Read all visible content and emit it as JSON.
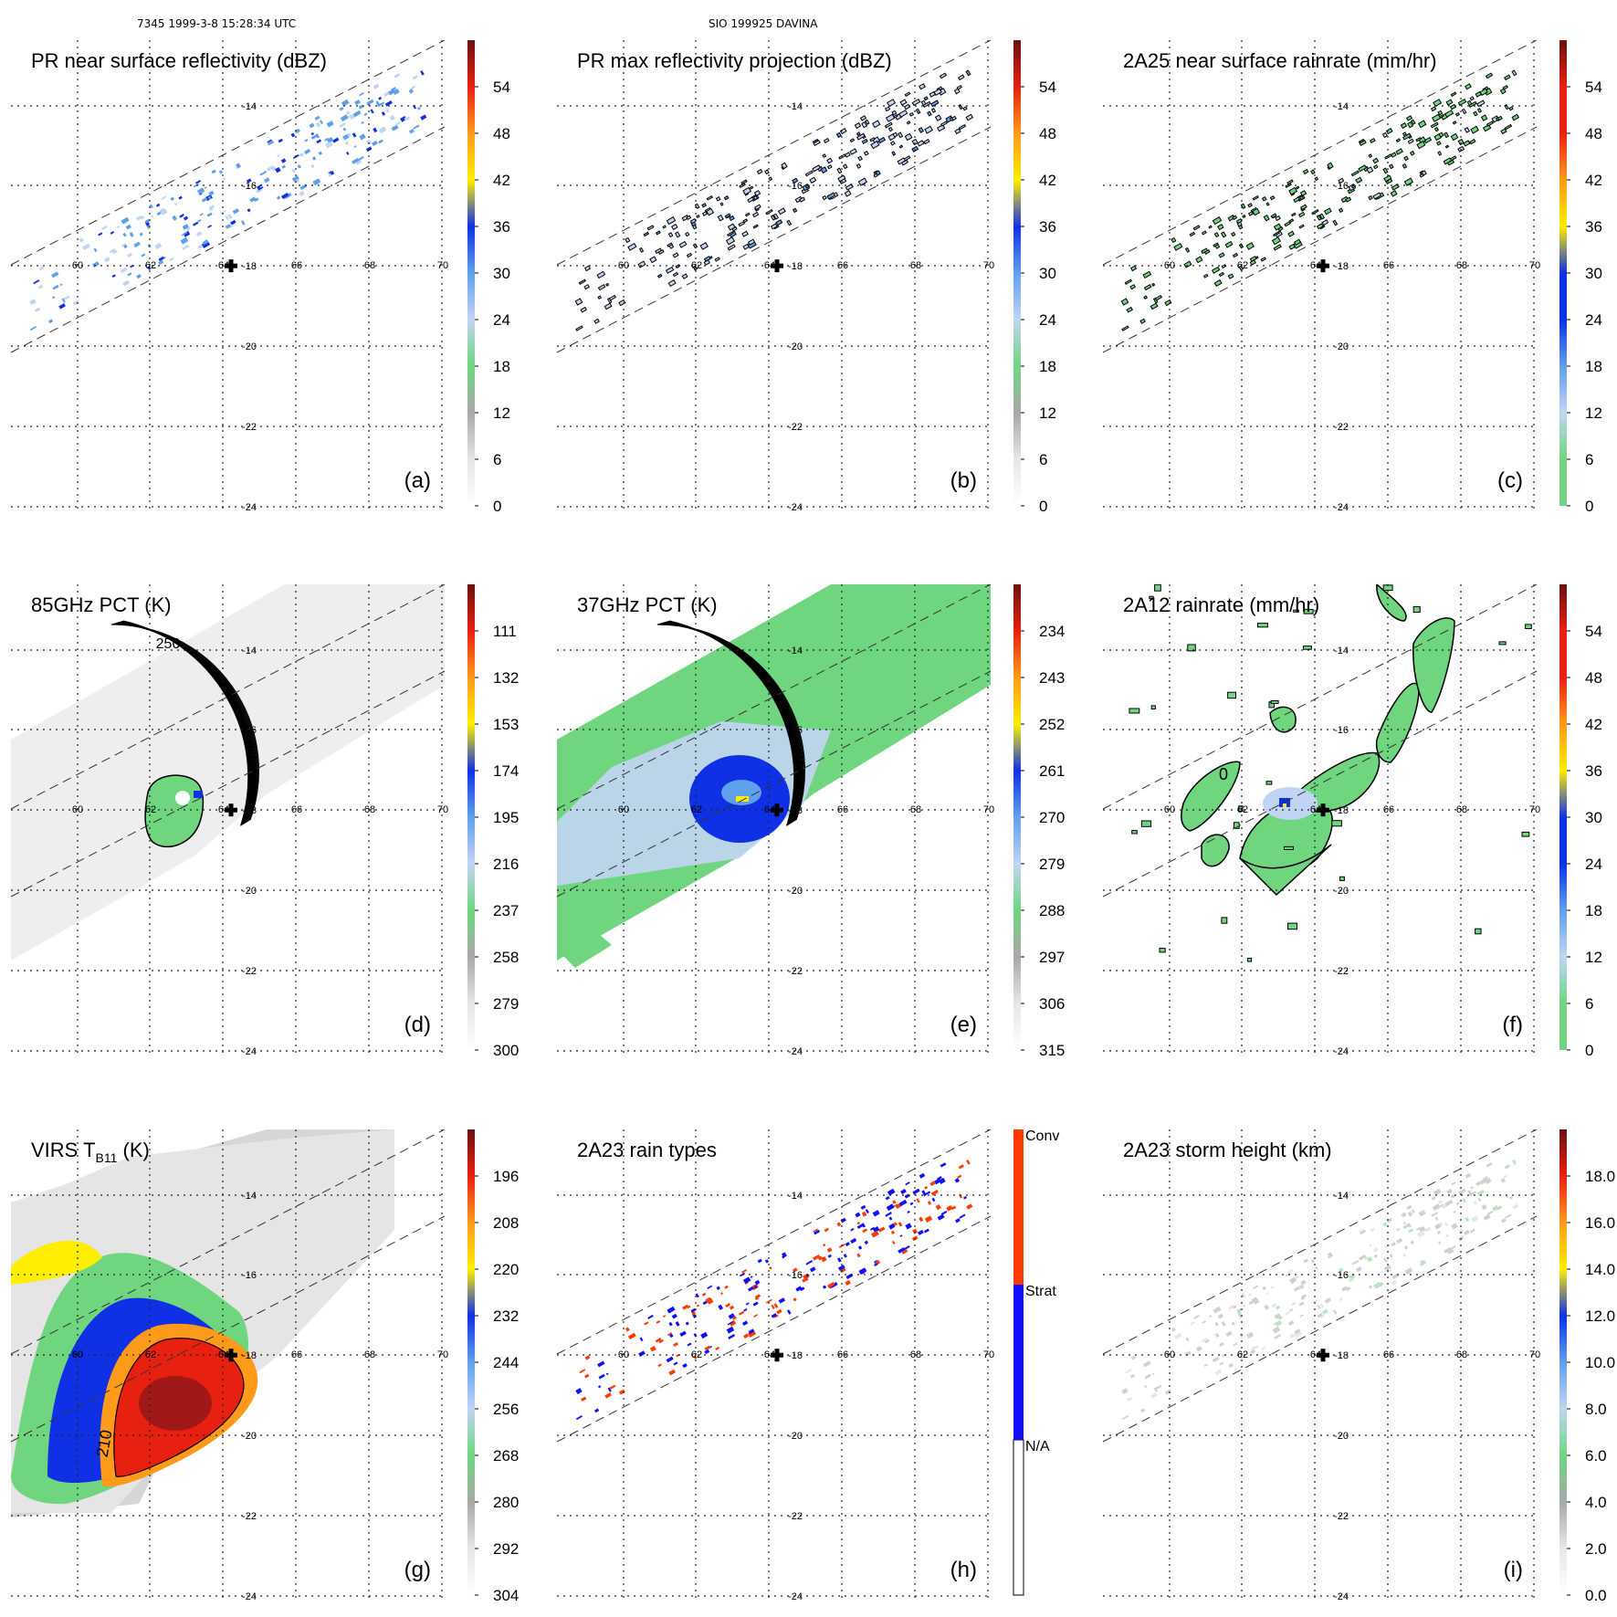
{
  "header": {
    "orbit_time": "7345 1999-3-8 15:28:34 UTC",
    "storm_id": "SIO 199925 DAVINA"
  },
  "map": {
    "lon_labels": [
      "60",
      "62",
      "64",
      "66",
      "68",
      "70"
    ],
    "lat_labels": [
      "-14",
      "-16",
      "-18",
      "-20",
      "-22",
      "-24"
    ],
    "storm_center": {
      "lon": 64.2,
      "lat": -18.0
    }
  },
  "colors": {
    "na": "#ffffff",
    "gray_light": "#e6e6e6",
    "gray": "#a8a8a8",
    "green": "#6fd67f",
    "lightblue": "#c2d4f4",
    "blue_mid": "#5fa0ec",
    "blue": "#1030e6",
    "yellow": "#ffee00",
    "orange": "#ff9a1a",
    "red": "#e82010",
    "darkred": "#6b1010",
    "conv": "#ff3b00",
    "strat": "#1010ff"
  },
  "panels": [
    {
      "key": "a",
      "title": "PR near surface reflectivity (dBZ)",
      "letter": "(a)",
      "cbar": [
        "0",
        "6",
        "12",
        "18",
        "24",
        "30",
        "36",
        "42",
        "48",
        "54"
      ]
    },
    {
      "key": "b",
      "title": "PR max reflectivity projection (dBZ)",
      "letter": "(b)",
      "cbar": [
        "0",
        "6",
        "12",
        "18",
        "24",
        "30",
        "36",
        "42",
        "48",
        "54"
      ]
    },
    {
      "key": "c",
      "title": "2A25 near surface rainrate (mm/hr)",
      "letter": "(c)",
      "cbar": [
        "0",
        "6",
        "12",
        "18",
        "24",
        "30",
        "36",
        "42",
        "48",
        "54"
      ]
    },
    {
      "key": "d",
      "title": "85GHz PCT (K)",
      "letter": "(d)",
      "cbar": [
        "300",
        "279",
        "258",
        "237",
        "216",
        "195",
        "174",
        "153",
        "132",
        "111"
      ],
      "contour": "250"
    },
    {
      "key": "e",
      "title": "37GHz PCT (K)",
      "letter": "(e)",
      "cbar": [
        "315",
        "306",
        "297",
        "288",
        "279",
        "270",
        "261",
        "252",
        "243",
        "234"
      ]
    },
    {
      "key": "f",
      "title": "2A12 rainrate (mm/hr)",
      "letter": "(f)",
      "cbar": [
        "0",
        "6",
        "12",
        "18",
        "24",
        "30",
        "36",
        "42",
        "48",
        "54"
      ],
      "contour": "0"
    },
    {
      "key": "g",
      "title_main": "VIRS T",
      "title_sub": "B11",
      "title_end": " (K)",
      "letter": "(g)",
      "cbar": [
        "304",
        "292",
        "280",
        "268",
        "256",
        "244",
        "232",
        "220",
        "208",
        "196"
      ],
      "contour": "210"
    },
    {
      "key": "h",
      "title": "2A23 rain types",
      "letter": "(h)",
      "cbar": [
        "N/A",
        "Strat",
        "Conv"
      ]
    },
    {
      "key": "i",
      "title": "2A23 storm height (km)",
      "letter": "(i)",
      "cbar": [
        "0.0",
        "2.0",
        "4.0",
        "6.0",
        "8.0",
        "10.0",
        "12.0",
        "14.0",
        "16.0",
        "18.0"
      ]
    }
  ]
}
